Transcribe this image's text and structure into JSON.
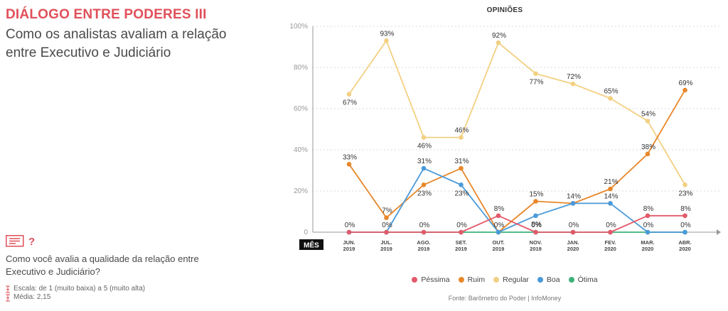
{
  "header": {
    "kicker": "DIÁLOGO ENTRE PODERES III",
    "subtitle": "Como os analistas avaliam a relação entre Executivo e Judiciário"
  },
  "question": {
    "icon": "survey-question-icon",
    "icon_text": "?",
    "text": "Como você avalia a qualidade da relação entre Executivo e Judiciário?",
    "scale": "Escala: de 1 (muito baixa) a 5 (muito alta)",
    "average": "Média: 2,15"
  },
  "source": "Fonte: Barômetro do Poder | InfoMoney",
  "colors": {
    "accent": "#e0505a",
    "pessima": "#e3596a",
    "ruim": "#e8872b",
    "regular": "#f2d082",
    "boa": "#4a9ad9",
    "otima": "#3db07a"
  },
  "chart_data": {
    "type": "line",
    "title": "OPINIÕES",
    "xlabel": "MÊS",
    "ylabel": "",
    "ylim": [
      0,
      100
    ],
    "yticks": [
      "0",
      "20%",
      "40%",
      "60%",
      "80%",
      "100%"
    ],
    "categories": [
      [
        "JUN.",
        "2019"
      ],
      [
        "JUL.",
        "2019"
      ],
      [
        "AGO.",
        "2019"
      ],
      [
        "SET.",
        "2019"
      ],
      [
        "OUT.",
        "2019"
      ],
      [
        "NOV.",
        "2019"
      ],
      [
        "JAN.",
        "2020"
      ],
      [
        "FEV.",
        "2020"
      ],
      [
        "MAR.",
        "2020"
      ],
      [
        "ABR.",
        "2020"
      ]
    ],
    "series": [
      {
        "name": "Péssima",
        "key": "pessima",
        "values": [
          0,
          0,
          0,
          0,
          8,
          0,
          0,
          0,
          8,
          8
        ]
      },
      {
        "name": "Ruim",
        "key": "ruim",
        "values": [
          33,
          7,
          23,
          31,
          0,
          15,
          14,
          21,
          38,
          69
        ]
      },
      {
        "name": "Regular",
        "key": "regular",
        "values": [
          67,
          93,
          46,
          46,
          92,
          77,
          72,
          65,
          54,
          23
        ]
      },
      {
        "name": "Boa",
        "key": "boa",
        "values": [
          0,
          0,
          31,
          23,
          0,
          8,
          14,
          14,
          0,
          0
        ]
      },
      {
        "name": "Ótima",
        "key": "otima",
        "values": [
          0,
          0,
          0,
          0,
          0,
          0,
          0,
          0,
          0,
          0
        ]
      }
    ],
    "data_labels": [
      {
        "text": "67%",
        "category": 0,
        "value": 67
      },
      {
        "text": "33%",
        "category": 0,
        "value": 33
      },
      {
        "text": "0%",
        "category": 0,
        "value": 0
      },
      {
        "text": "93%",
        "category": 1,
        "value": 93
      },
      {
        "text": "7%",
        "category": 1,
        "value": 7
      },
      {
        "text": "0%",
        "category": 1,
        "value": 0
      },
      {
        "text": "46%",
        "category": 2,
        "value": 46
      },
      {
        "text": "31%",
        "category": 2,
        "value": 31
      },
      {
        "text": "23%",
        "category": 2,
        "value": 23
      },
      {
        "text": "0%",
        "category": 2,
        "value": 0
      },
      {
        "text": "46%",
        "category": 3,
        "value": 46
      },
      {
        "text": "31%",
        "category": 3,
        "value": 31
      },
      {
        "text": "23%",
        "category": 3,
        "value": 23
      },
      {
        "text": "0%",
        "category": 3,
        "value": 0
      },
      {
        "text": "92%",
        "category": 4,
        "value": 92
      },
      {
        "text": "8%",
        "category": 4,
        "value": 8
      },
      {
        "text": "0%",
        "category": 4,
        "value": 0
      },
      {
        "text": "77%",
        "category": 5,
        "value": 77
      },
      {
        "text": "15%",
        "category": 5,
        "value": 15
      },
      {
        "text": "8%",
        "category": 5,
        "value": 8
      },
      {
        "text": "0%",
        "category": 5,
        "value": 0
      },
      {
        "text": "72%",
        "category": 6,
        "value": 72
      },
      {
        "text": "14%",
        "category": 6,
        "value": 14
      },
      {
        "text": "0%",
        "category": 6,
        "value": 0
      },
      {
        "text": "65%",
        "category": 7,
        "value": 65
      },
      {
        "text": "21%",
        "category": 7,
        "value": 21
      },
      {
        "text": "14%",
        "category": 7,
        "value": 14
      },
      {
        "text": "0%",
        "category": 7,
        "value": 0
      },
      {
        "text": "54%",
        "category": 8,
        "value": 54
      },
      {
        "text": "38%",
        "category": 8,
        "value": 38
      },
      {
        "text": "8%",
        "category": 8,
        "value": 8
      },
      {
        "text": "0%",
        "category": 8,
        "value": 0
      },
      {
        "text": "69%",
        "category": 9,
        "value": 69
      },
      {
        "text": "23%",
        "category": 9,
        "value": 23
      },
      {
        "text": "8%",
        "category": 9,
        "value": 8
      },
      {
        "text": "0%",
        "category": 9,
        "value": 0
      }
    ],
    "legend": "bottom-center",
    "grid": true
  }
}
